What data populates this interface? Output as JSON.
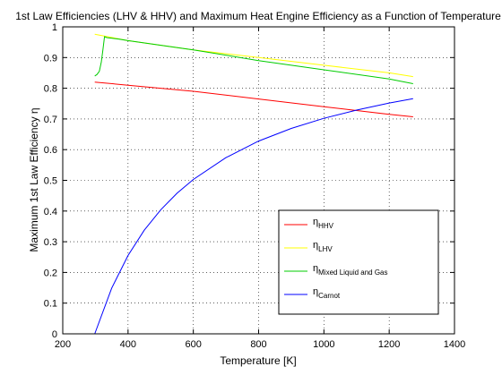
{
  "chart_data": {
    "type": "line",
    "title": "1st Law Efficiencies (LHV & HHV) and Maximum Heat Engine Efficiency as a Function of Temperature",
    "xlabel": "Temperature [K]",
    "ylabel": "Maximum 1st Law Efficiency  η",
    "xlim": [
      200,
      1400
    ],
    "ylim": [
      0,
      1
    ],
    "xticks": [
      "200",
      "400",
      "600",
      "800",
      "1000",
      "1200",
      "1400"
    ],
    "yticks": [
      "0",
      "0.1",
      "0.2",
      "0.3",
      "0.4",
      "0.5",
      "0.6",
      "0.7",
      "0.8",
      "0.9",
      "1"
    ],
    "grid": true,
    "legend_position": "bottom-right",
    "series": [
      {
        "name": "HHV",
        "name_prefix": "η",
        "color": "#ff0000",
        "x": [
          298,
          400,
          600,
          800,
          1000,
          1200,
          1273
        ],
        "y": [
          0.82,
          0.81,
          0.79,
          0.765,
          0.74,
          0.715,
          0.707
        ]
      },
      {
        "name": "LHV",
        "name_prefix": "η",
        "color": "#ffff00",
        "x": [
          298,
          400,
          600,
          800,
          1000,
          1200,
          1273
        ],
        "y": [
          0.976,
          0.955,
          0.925,
          0.9,
          0.875,
          0.85,
          0.838
        ]
      },
      {
        "name": "Mixed Liquid and Gas",
        "name_prefix": "η",
        "color": "#00cc00",
        "x": [
          298,
          305,
          312,
          318,
          323,
          328,
          335,
          373,
          400,
          600,
          800,
          1000,
          1200,
          1273
        ],
        "y": [
          0.84,
          0.845,
          0.855,
          0.885,
          0.925,
          0.968,
          0.965,
          0.96,
          0.955,
          0.925,
          0.89,
          0.86,
          0.83,
          0.815
        ]
      },
      {
        "name": "Carnot",
        "name_prefix": "η",
        "color": "#0000ff",
        "x": [
          298,
          350,
          400,
          450,
          500,
          550,
          600,
          700,
          800,
          900,
          1000,
          1100,
          1200,
          1273
        ],
        "y": [
          0,
          0.149,
          0.255,
          0.338,
          0.404,
          0.458,
          0.503,
          0.574,
          0.628,
          0.669,
          0.702,
          0.729,
          0.752,
          0.766
        ]
      }
    ]
  }
}
